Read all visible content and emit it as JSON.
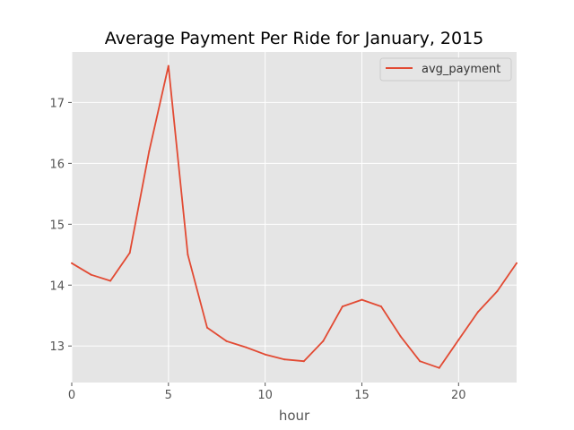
{
  "chart_data": {
    "type": "line",
    "title": "Average Payment Per Ride for January, 2015",
    "xlabel": "hour",
    "ylabel": "",
    "x": [
      0,
      1,
      2,
      3,
      4,
      5,
      6,
      7,
      8,
      9,
      10,
      11,
      12,
      13,
      14,
      15,
      16,
      17,
      18,
      19,
      20,
      21,
      22,
      23
    ],
    "series": [
      {
        "name": "avg_payment",
        "color": "#e24a33",
        "values": [
          14.36,
          14.17,
          14.07,
          14.53,
          16.2,
          17.6,
          14.5,
          13.3,
          13.08,
          12.98,
          12.86,
          12.78,
          12.75,
          13.08,
          13.65,
          13.76,
          13.65,
          13.16,
          12.75,
          12.64,
          13.1,
          13.56,
          13.9,
          14.36
        ]
      }
    ],
    "xlim": [
      0,
      23
    ],
    "ylim": [
      12.4,
      17.83
    ],
    "xticks": [
      0,
      5,
      10,
      15,
      20
    ],
    "yticks": [
      13,
      14,
      15,
      16,
      17
    ],
    "grid": true,
    "legend": "top-right",
    "background": "#e5e5e5"
  }
}
